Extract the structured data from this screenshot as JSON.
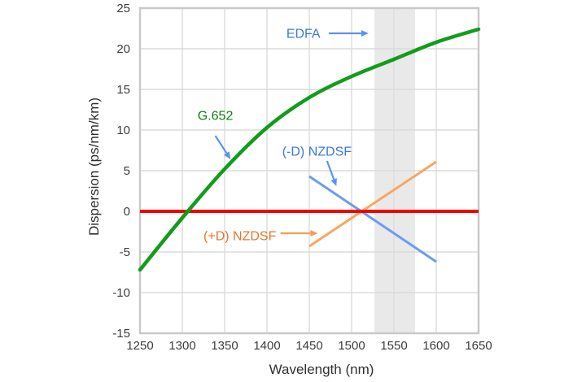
{
  "figure": {
    "background": "#FFFFFF"
  },
  "chart_data": {
    "type": "line",
    "title": "",
    "xlabel": "Wavelength (nm)",
    "ylabel": "Dispersion (ps/nm/km)",
    "xlim": [
      1250,
      1650
    ],
    "ylim": [
      -15,
      25
    ],
    "x_ticks": [
      1250,
      1300,
      1350,
      1400,
      1450,
      1500,
      1550,
      1600,
      1650
    ],
    "y_ticks": [
      25,
      20,
      15,
      10,
      5,
      0,
      -5,
      -10,
      -15
    ],
    "grid": true,
    "legend": "none",
    "colors": {
      "frame": "#C9C9C9",
      "gridline": "#DBDBDB",
      "tick_text": "#3C3C3C",
      "band": "#E9E9E9"
    },
    "band": {
      "name": "EDFA band",
      "x0": 1527,
      "x1": 1575,
      "color": "#E9E9E9"
    },
    "series": [
      {
        "name": "(-D) NZDSF",
        "color": "#6D9BEE",
        "width": 3,
        "smooth": false,
        "x": [
          1450,
          1600
        ],
        "y": [
          4.3,
          -6.2
        ]
      },
      {
        "name": "(+D) NZDSF",
        "color": "#F8A661",
        "width": 3,
        "smooth": false,
        "x": [
          1450,
          1600
        ],
        "y": [
          -4.3,
          6.1
        ]
      },
      {
        "name": "zero dispersion baseline",
        "color": "#F20000",
        "width": 4,
        "smooth": false,
        "x": [
          1250,
          1650
        ],
        "y": [
          0,
          0
        ]
      },
      {
        "name": "G.652",
        "color": "#129C1C",
        "width": 4.5,
        "smooth": true,
        "x": [
          1250,
          1300,
          1350,
          1400,
          1450,
          1500,
          1550,
          1600,
          1650
        ],
        "y": [
          -7.2,
          -0.8,
          5.2,
          10.3,
          14.0,
          16.6,
          18.7,
          20.8,
          22.4
        ]
      }
    ],
    "annotations": [
      {
        "id": "edfa",
        "text": "EDFA",
        "color": "#3B79DC",
        "label_at": [
          1443,
          21.9
        ],
        "arrow": {
          "from": [
            1473,
            21.9
          ],
          "to": [
            1520,
            21.9
          ],
          "color": "#5B93EE"
        }
      },
      {
        "id": "g652",
        "text": "G.652",
        "color": "#147D14",
        "label_at": [
          1339,
          11.8
        ],
        "arrow": {
          "from": [
            1339,
            9.3
          ],
          "to": [
            1357,
            6.4
          ],
          "color": "#5B93EE"
        }
      },
      {
        "id": "nzdsf-minus",
        "text": "(-D) NZDSF",
        "color": "#3B79DC",
        "label_at": [
          1459,
          7.4
        ],
        "arrow": {
          "from": [
            1471,
            6.2
          ],
          "to": [
            1482,
            3.1
          ],
          "color": "#5B93EE"
        }
      },
      {
        "id": "nzdsf-plus",
        "text": "(+D) NZDSF",
        "color": "#E2762D",
        "label_at": [
          1368,
          -3.0
        ],
        "arrow": {
          "from": [
            1416,
            -2.7
          ],
          "to": [
            1460,
            -2.7
          ],
          "color": "#F29D52"
        }
      }
    ]
  }
}
